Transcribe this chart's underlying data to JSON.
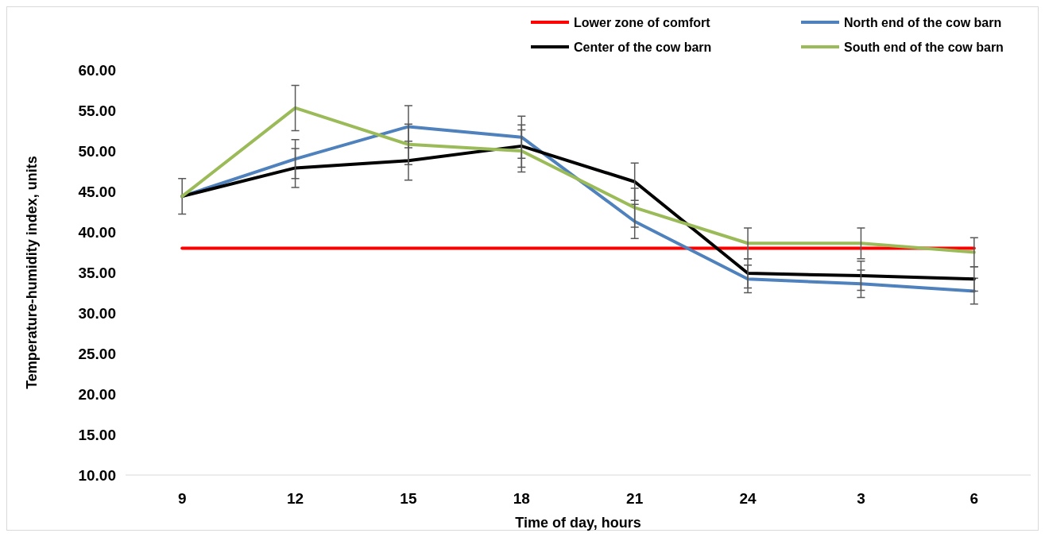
{
  "chart_data": {
    "type": "line",
    "xlabel": "Time of day, hours",
    "ylabel": "Temperature-humidity index, units",
    "categories": [
      "9",
      "12",
      "15",
      "18",
      "21",
      "24",
      "3",
      "6"
    ],
    "ylim": [
      10,
      60
    ],
    "yticks": [
      {
        "value": 10,
        "label": "10.00"
      },
      {
        "value": 15,
        "label": "15.00"
      },
      {
        "value": 20,
        "label": "20.00"
      },
      {
        "value": 25,
        "label": "25.00"
      },
      {
        "value": 30,
        "label": "30.00"
      },
      {
        "value": 35,
        "label": "35.00"
      },
      {
        "value": 40,
        "label": "40.00"
      },
      {
        "value": 45,
        "label": "45.00"
      },
      {
        "value": 50,
        "label": "50.00"
      },
      {
        "value": 55,
        "label": "55.00"
      },
      {
        "value": 60,
        "label": "60.00"
      }
    ],
    "grid": false,
    "legend": "top right",
    "marker": "none",
    "line_style": "solid",
    "series": [
      {
        "name": "Lower zone of comfort",
        "color": "#ff0000",
        "values": [
          38,
          38,
          38,
          38,
          38,
          38,
          38,
          38
        ]
      },
      {
        "name": "North end of the cow barn",
        "color": "#4f81bd",
        "values": [
          44.4,
          49.0,
          53.0,
          51.7,
          41.3,
          34.2,
          33.6,
          32.7
        ],
        "errors": [
          2.2,
          2.4,
          2.6,
          2.6,
          2.1,
          1.7,
          1.7,
          1.6
        ]
      },
      {
        "name": "Center of the cow barn",
        "color": "#000000",
        "values": [
          44.4,
          47.9,
          48.8,
          50.6,
          46.2,
          34.9,
          34.6,
          34.2
        ],
        "errors": [
          2.2,
          2.4,
          2.4,
          2.6,
          2.3,
          1.8,
          1.8,
          1.5
        ]
      },
      {
        "name": "South end of the cow barn",
        "color": "#9bbb59",
        "values": [
          44.4,
          55.3,
          50.8,
          50.0,
          43.0,
          38.6,
          38.6,
          37.5
        ],
        "errors": [
          2.2,
          2.8,
          2.5,
          2.6,
          2.4,
          1.9,
          1.9,
          1.8
        ]
      }
    ]
  }
}
